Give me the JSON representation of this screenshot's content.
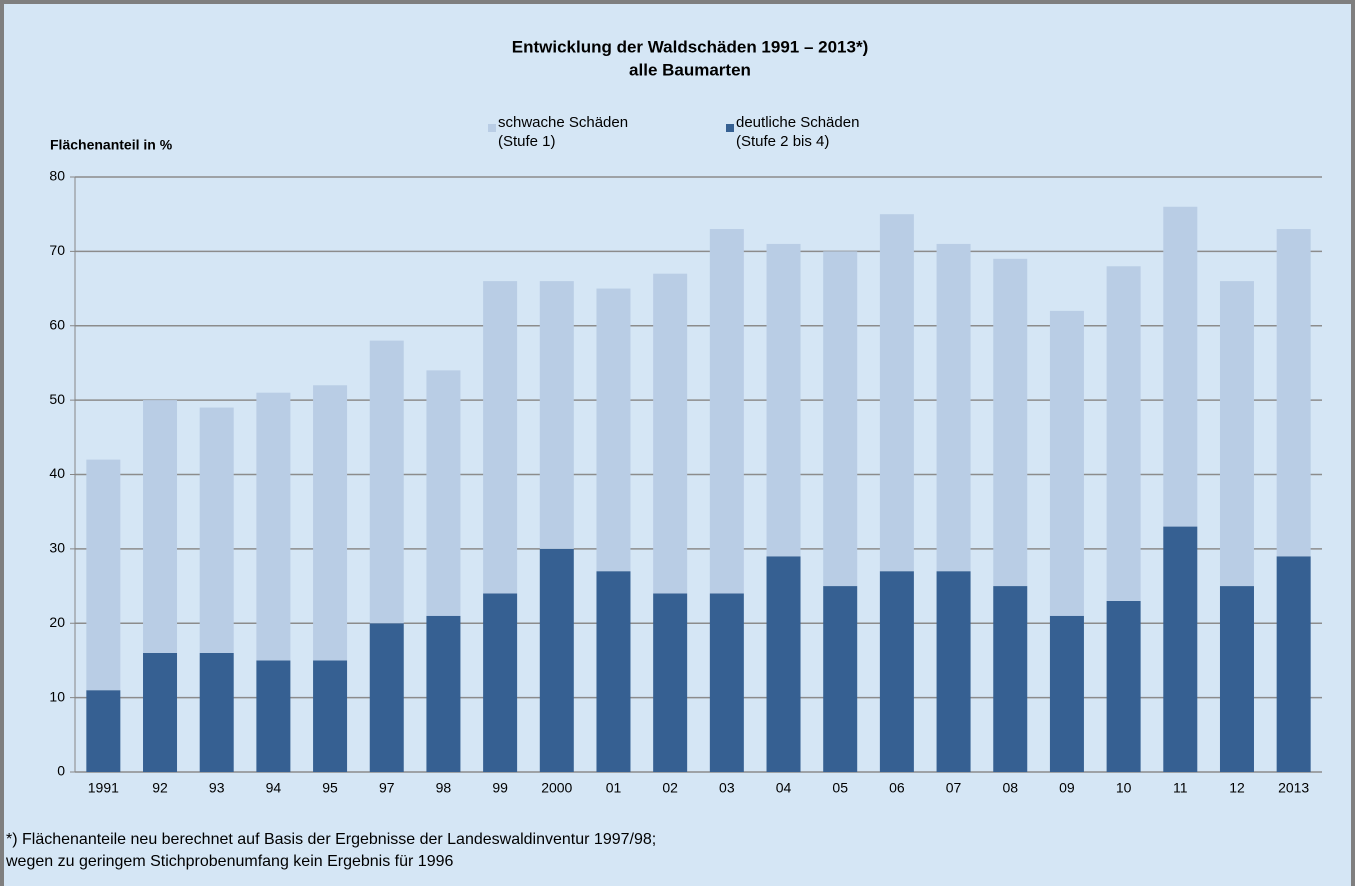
{
  "chart_data": {
    "type": "stacked_bar",
    "title": "Entwicklung der Waldschäden 1991 – 2013*)",
    "subtitle": "alle Baumarten",
    "y_label": "Flächenanteil in %",
    "categories": [
      "1991",
      "92",
      "93",
      "94",
      "95",
      "97",
      "98",
      "99",
      "2000",
      "01",
      "02",
      "03",
      "04",
      "05",
      "06",
      "07",
      "08",
      "09",
      "10",
      "11",
      "12",
      "2013"
    ],
    "series": [
      {
        "name": "schwache Schäden\n(Stufe 1)",
        "color": "#b9cde5",
        "values": [
          31,
          34,
          33,
          36,
          37,
          38,
          33,
          42,
          36,
          38,
          43,
          49,
          42,
          45,
          48,
          44,
          44,
          41,
          45,
          43,
          41,
          44
        ]
      },
      {
        "name": "deutliche Schäden\n(Stufe 2 bis 4)",
        "color": "#366092",
        "values": [
          11,
          16,
          16,
          15,
          15,
          20,
          21,
          24,
          30,
          27,
          24,
          24,
          29,
          25,
          27,
          27,
          25,
          21,
          23,
          33,
          25,
          29
        ]
      }
    ],
    "ylim": [
      0,
      80
    ],
    "yticks": [
      0,
      10,
      20,
      30,
      40,
      50,
      60,
      70,
      80
    ],
    "grid": true,
    "footnote": [
      "*) Flächenanteile neu berechnet auf Basis der Ergebnisse der Landeswaldinventur 1997/98;",
      "wegen zu geringem Stichprobenumfang kein Ergebnis für 1996"
    ]
  }
}
